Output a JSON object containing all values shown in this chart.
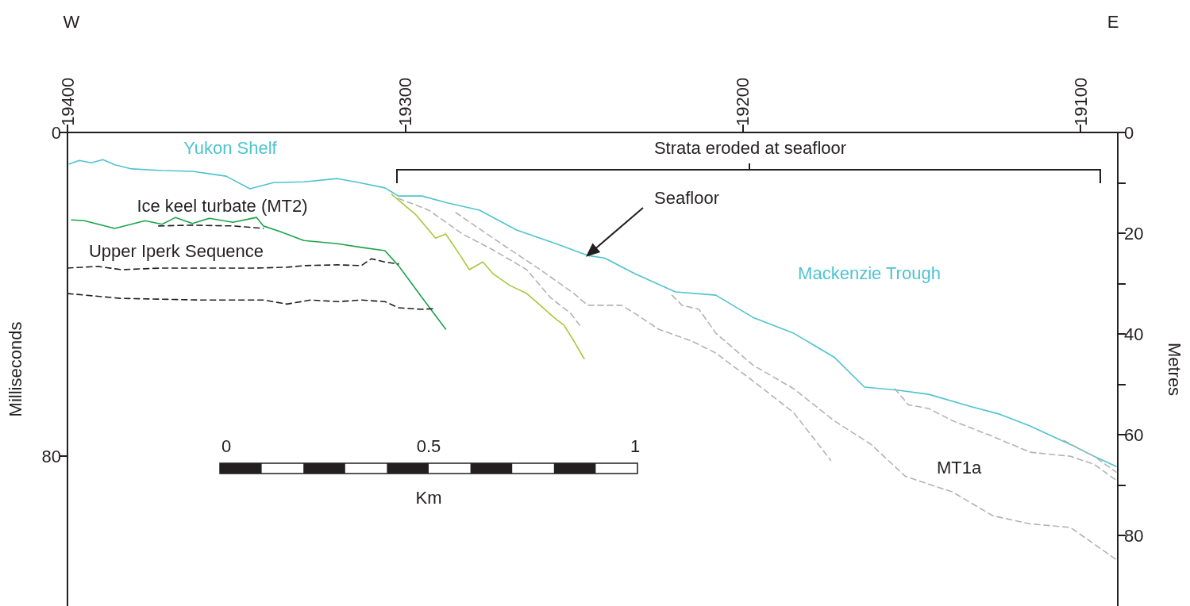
{
  "chart_data": {
    "type": "line",
    "ylabel": "Milliseconds",
    "y2label": "Metres",
    "xlim": [
      19400,
      19089
    ],
    "xticks": [
      19400,
      19300,
      19200,
      19100
    ],
    "ylim": [
      117,
      0
    ],
    "yticks": [
      0,
      80
    ],
    "y2lim": [
      94,
      0
    ],
    "y2ticks": [
      0,
      {
        "value": 10,
        "label": null
      },
      20,
      {
        "value": 30,
        "label": null
      },
      40,
      {
        "value": 50,
        "label": null
      },
      60,
      {
        "value": 70,
        "label": null
      },
      80
    ],
    "marker": "none",
    "grid": false,
    "annotations": [
      "W",
      "E",
      "Yukon Shelf",
      "Strata eroded at seafloor",
      "Ice keel turbate (MT2)",
      "Upper Iperk Sequence",
      "Seafloor",
      "Mackenzie Trough",
      "MT1a",
      "0",
      "0.5",
      "1",
      "Km"
    ],
    "series": [
      {
        "color": "#4fc3d0",
        "line_style": "solid",
        "x": [
          19399.5,
          19396.5,
          19393,
          19389.5,
          19386,
          19381,
          19372,
          19363,
          19353,
          19346,
          19339,
          19330,
          19320,
          19313,
          19306,
          19304,
          19302,
          19295,
          19288,
          19278,
          19267,
          19255,
          19246,
          19241,
          19232,
          19220,
          19208,
          19197,
          19185,
          19173,
          19164,
          19154,
          19145,
          19133,
          19124,
          19115,
          19103,
          19096,
          19089.5
        ],
        "values": [
          7.8,
          6.9,
          7.5,
          6.7,
          8.0,
          9.0,
          9.4,
          9.6,
          10.8,
          13.9,
          12.4,
          12.2,
          11.4,
          12.5,
          13.7,
          14.7,
          15.7,
          15.7,
          17.3,
          19.2,
          24.1,
          27.6,
          30.4,
          31.0,
          34.9,
          39.4,
          40.2,
          45.7,
          49.6,
          55.5,
          62.9,
          63.7,
          64.7,
          67.6,
          69.6,
          72.5,
          77.1,
          80.0,
          82.5
        ]
      },
      {
        "color": "#1aa54a",
        "line_style": "solid",
        "x": [
          19398.8,
          19395,
          19386,
          19377,
          19372,
          19368,
          19363,
          19358,
          19351,
          19344,
          19342,
          19337,
          19330,
          19320,
          19313,
          19306,
          19302,
          19295,
          19288
        ],
        "values": [
          21.6,
          21.8,
          23.7,
          21.8,
          22.7,
          21.0,
          22.5,
          21.2,
          22.2,
          21.0,
          23.1,
          24.5,
          26.7,
          27.5,
          28.4,
          29.2,
          32.9,
          40.8,
          48.6
        ]
      },
      {
        "color": "#a6c93a",
        "line_style": "solid",
        "x": [
          19304,
          19297,
          19291,
          19288,
          19284,
          19281,
          19277,
          19274,
          19269,
          19264,
          19260,
          19256,
          19253,
          19250,
          19247
        ],
        "values": [
          15.3,
          20.2,
          26.1,
          25.1,
          30.0,
          33.9,
          32.0,
          34.9,
          37.8,
          39.8,
          42.7,
          45.7,
          47.6,
          51.6,
          55.9
        ]
      },
      {
        "color": "#231f20",
        "line_style": "dashed",
        "x": [
          19373,
          19363,
          19351,
          19342
        ],
        "values": [
          23.1,
          22.9,
          23.1,
          23.7
        ]
      },
      {
        "color": "#231f20",
        "line_style": "dashed",
        "x": [
          19400,
          19391,
          19384,
          19372,
          19358,
          19344,
          19335,
          19330,
          19320,
          19313,
          19310,
          19306,
          19302
        ],
        "values": [
          33.5,
          33.1,
          33.9,
          33.5,
          33.5,
          33.5,
          33.3,
          32.9,
          32.7,
          32.9,
          31.2,
          32.0,
          32.5
        ]
      },
      {
        "color": "#231f20",
        "line_style": "dashed",
        "x": [
          19400,
          19384,
          19360,
          19342,
          19335,
          19328,
          19320,
          19313,
          19306,
          19302,
          19295,
          19291
        ],
        "values": [
          39.8,
          41.0,
          41.4,
          41.4,
          42.4,
          41.4,
          41.8,
          41.4,
          41.8,
          43.3,
          43.7,
          43.5
        ]
      },
      {
        "color": "#b3b3b3",
        "line_style": "dashed",
        "x": [
          19302,
          19293,
          19283,
          19274,
          19264,
          19257,
          19251,
          19248
        ],
        "values": [
          16.3,
          19.2,
          25.1,
          29.0,
          33.9,
          40.8,
          44.7,
          48.0
        ]
      },
      {
        "color": "#b3b3b3",
        "line_style": "dashed",
        "x": [
          19285,
          19274,
          19260,
          19250,
          19246,
          19236,
          19232,
          19225,
          19215,
          19208,
          19197,
          19185,
          19174
        ],
        "values": [
          19.8,
          26.1,
          33.9,
          39.8,
          42.7,
          42.7,
          44.7,
          48.6,
          51.6,
          54.5,
          61.4,
          69.2,
          81.0
        ]
      },
      {
        "color": "#b3b3b3",
        "line_style": "dashed",
        "x": [
          19221,
          19218,
          19213,
          19208,
          19197,
          19185,
          19173,
          19162,
          19152,
          19145,
          19138,
          19126,
          19115,
          19103,
          19089.5
        ],
        "values": [
          40.2,
          42.7,
          43.7,
          49.6,
          57.5,
          63.3,
          71.2,
          77.1,
          84.9,
          86.9,
          88.8,
          94.7,
          96.7,
          97.6,
          105.5
        ]
      },
      {
        "color": "#b3b3b3",
        "line_style": "dashed",
        "x": [
          19155,
          19151,
          19145,
          19138,
          19126,
          19115,
          19103,
          19096,
          19089.5
        ],
        "values": [
          63.3,
          67.3,
          68.2,
          71.2,
          75.1,
          79.0,
          80.0,
          82.0,
          85.9
        ]
      },
      {
        "color": "#b3b3b3",
        "line_style": "dashed",
        "x": [
          19105,
          19096,
          19089.5
        ],
        "values": [
          76.1,
          80.0,
          83.9
        ]
      }
    ]
  }
}
